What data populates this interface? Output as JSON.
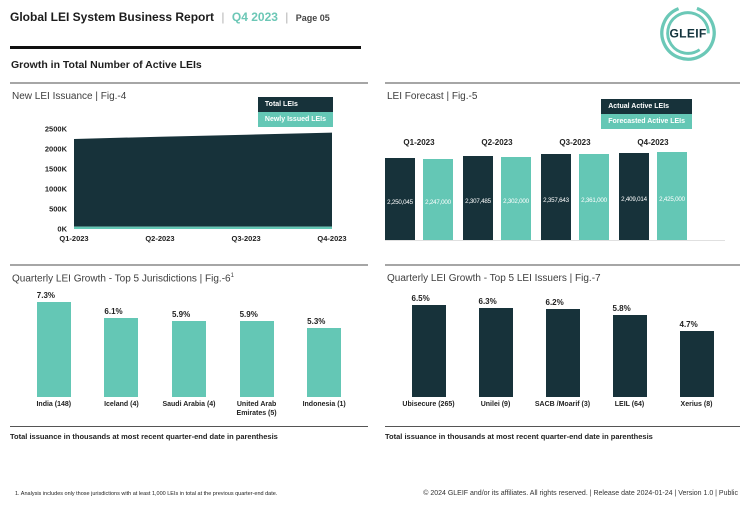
{
  "header": {
    "title": "Global LEI System Business Report",
    "sep": "|",
    "period": "Q4 2023",
    "page_label": "Page 05",
    "logo_text": "GLEIF"
  },
  "section_title": "Growth in Total Number of Active LEIs",
  "colors": {
    "dark_navy": "#17323a",
    "teal": "#64c7b5"
  },
  "charts": {
    "issuance": {
      "title": "New LEI Issuance | Fig.-4",
      "legend": [
        "Total LEIs",
        "Newly Issued LEIs"
      ],
      "y_ticks": [
        "2500K",
        "2000K",
        "1500K",
        "1000K",
        "500K",
        "0K"
      ],
      "x_ticks": [
        "Q1-2023",
        "Q2-2023",
        "Q3-2023",
        "Q4-2023"
      ]
    },
    "forecast": {
      "title": "LEI Forecast | Fig.-5",
      "legend": [
        "Actual Active LEIs",
        "Forecasted Active LEIs"
      ],
      "groups": [
        {
          "quarter": "Q1-2023",
          "actual": "2,250,045",
          "forecast": "2,247,000"
        },
        {
          "quarter": "Q2-2023",
          "actual": "2,307,485",
          "forecast": "2,302,000"
        },
        {
          "quarter": "Q3-2023",
          "actual": "2,357,643",
          "forecast": "2,361,000"
        },
        {
          "quarter": "Q4-2023",
          "actual": "2,409,014",
          "forecast": "2,425,000"
        }
      ]
    },
    "jurisdictions": {
      "title": "Quarterly LEI Growth - Top 5 Jurisdictions | Fig.-6",
      "superscript": "1",
      "bars": [
        {
          "label": "India (148)",
          "pct": "7.3%"
        },
        {
          "label": "Iceland (4)",
          "pct": "6.1%"
        },
        {
          "label": "Saudi Arabia (4)",
          "pct": "5.9%"
        },
        {
          "label": "United Arab Emirates (5)",
          "pct": "5.9%"
        },
        {
          "label": "Indonesia (1)",
          "pct": "5.3%"
        }
      ],
      "footnote": "Total issuance in thousands at most recent quarter-end date in parenthesis"
    },
    "issuers": {
      "title": "Quarterly LEI Growth - Top 5 LEI Issuers | Fig.-7",
      "bars": [
        {
          "label": "Ubisecure (265)",
          "pct": "6.5%"
        },
        {
          "label": "Unilei (9)",
          "pct": "6.3%"
        },
        {
          "label": "SACB /Moarif (3)",
          "pct": "6.2%"
        },
        {
          "label": "LEIL (64)",
          "pct": "5.8%"
        },
        {
          "label": "Xerius (8)",
          "pct": "4.7%"
        }
      ],
      "footnote": "Total issuance in thousands at most recent quarter-end date in parenthesis"
    }
  },
  "chart_data": [
    {
      "type": "area",
      "title": "New LEI Issuance | Fig.-4",
      "x": [
        "Q1-2023",
        "Q2-2023",
        "Q3-2023",
        "Q4-2023"
      ],
      "series": [
        {
          "name": "Total LEIs",
          "values": [
            2250045,
            2307485,
            2357643,
            2409014
          ]
        },
        {
          "name": "Newly Issued LEIs",
          "values": [
            60000,
            60000,
            60000,
            60000
          ]
        }
      ],
      "ylim": [
        0,
        2500000
      ],
      "y_tick_step": 500000,
      "grid": false,
      "legend_position": "top-right"
    },
    {
      "type": "bar",
      "title": "LEI Forecast | Fig.-5",
      "categories": [
        "Q1-2023",
        "Q2-2023",
        "Q3-2023",
        "Q4-2023"
      ],
      "series": [
        {
          "name": "Actual Active LEIs",
          "values": [
            2250045,
            2307485,
            2357643,
            2409014
          ]
        },
        {
          "name": "Forecasted Active LEIs",
          "values": [
            2247000,
            2302000,
            2361000,
            2425000
          ]
        }
      ],
      "data_labels": true,
      "grid": false,
      "legend_position": "top-right"
    },
    {
      "type": "bar",
      "title": "Quarterly LEI Growth - Top 5 Jurisdictions | Fig.-6",
      "categories": [
        "India (148)",
        "Iceland (4)",
        "Saudi Arabia (4)",
        "United Arab Emirates (5)",
        "Indonesia (1)"
      ],
      "values": [
        7.3,
        6.1,
        5.9,
        5.9,
        5.3
      ],
      "unit": "%",
      "grid": false
    },
    {
      "type": "bar",
      "title": "Quarterly LEI Growth - Top 5 LEI Issuers | Fig.-7",
      "categories": [
        "Ubisecure (265)",
        "Unilei (9)",
        "SACB /Moarif (3)",
        "LEIL (64)",
        "Xerius (8)"
      ],
      "values": [
        6.5,
        6.3,
        6.2,
        5.8,
        4.7
      ],
      "unit": "%",
      "grid": false
    }
  ],
  "footer": {
    "note": "1. Analysis includes only those jurisdictions with at least 1,000 LEIs in total at the previous quarter-end date.",
    "copyright": "© 2024 GLEIF and/or its affiliates. All rights reserved. | Release date 2024-01-24 | Version 1.0 | Public"
  }
}
